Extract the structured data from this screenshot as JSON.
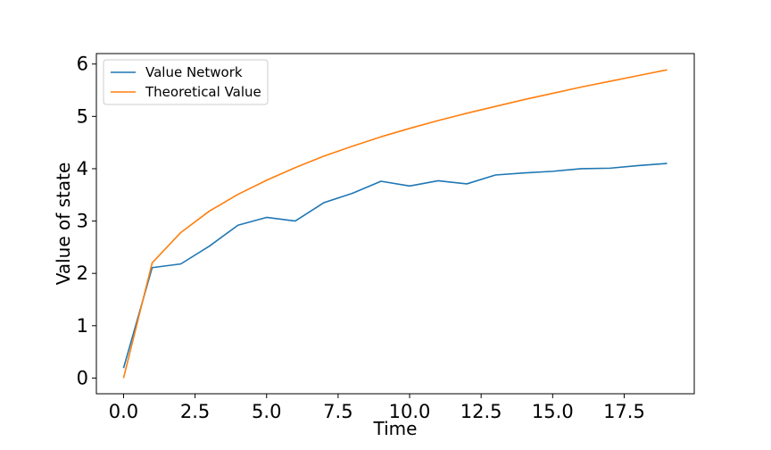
{
  "chart_data": {
    "type": "line",
    "title": "",
    "xlabel": "Time",
    "ylabel": "Value of state",
    "xlim": [
      -0.95,
      19.95
    ],
    "ylim": [
      -0.3,
      6.2
    ],
    "xticks": [
      0.0,
      2.5,
      5.0,
      7.5,
      10.0,
      12.5,
      15.0,
      17.5
    ],
    "xtick_labels": [
      "0.0",
      "2.5",
      "5.0",
      "7.5",
      "10.0",
      "12.5",
      "15.0",
      "17.5"
    ],
    "yticks": [
      0,
      1,
      2,
      3,
      4,
      5,
      6
    ],
    "ytick_labels": [
      "0",
      "1",
      "2",
      "3",
      "4",
      "5",
      "6"
    ],
    "grid": false,
    "legend_position": "top-left",
    "x": [
      0,
      1,
      2,
      3,
      4,
      5,
      6,
      7,
      8,
      9,
      10,
      11,
      12,
      13,
      14,
      15,
      16,
      17,
      18,
      19
    ],
    "series": [
      {
        "name": "Value Network",
        "color": "#1f77b4",
        "values": [
          0.19,
          2.11,
          2.18,
          2.52,
          2.92,
          3.07,
          3.0,
          3.35,
          3.53,
          3.76,
          3.67,
          3.77,
          3.71,
          3.88,
          3.92,
          3.95,
          4.0,
          4.01,
          4.06,
          4.1
        ]
      },
      {
        "name": "Theoretical Value",
        "color": "#ff7f0e",
        "values": [
          0.0,
          2.2,
          2.78,
          3.19,
          3.51,
          3.78,
          4.02,
          4.24,
          4.43,
          4.61,
          4.77,
          4.92,
          5.06,
          5.19,
          5.32,
          5.44,
          5.56,
          5.67,
          5.78,
          5.89
        ]
      }
    ]
  }
}
